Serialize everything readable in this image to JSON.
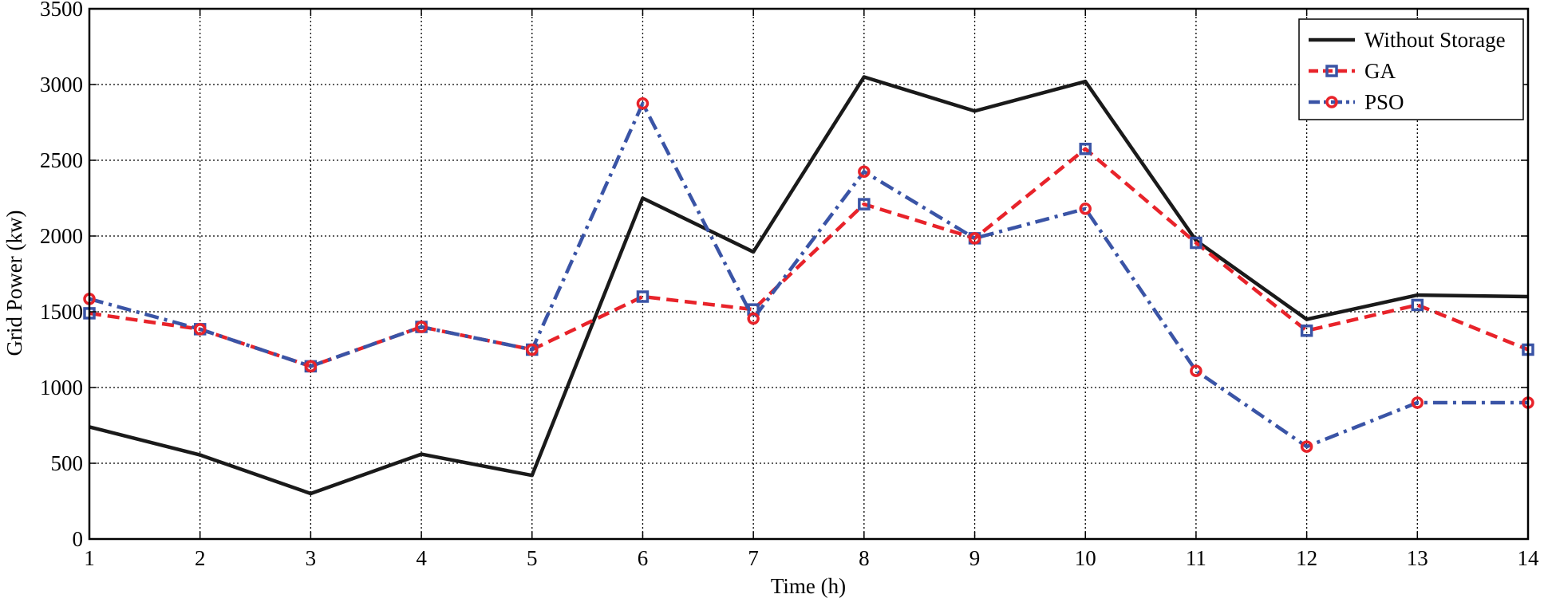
{
  "chart_data": {
    "type": "line",
    "title": "",
    "xlabel": "Time (h)",
    "ylabel": "Grid Power (kw)",
    "xlim": [
      1,
      14
    ],
    "ylim": [
      0,
      3500
    ],
    "grid": true,
    "legend_position": "top-right",
    "x": [
      1,
      2,
      3,
      4,
      5,
      6,
      7,
      8,
      9,
      10,
      11,
      12,
      13,
      14
    ],
    "xticks": [
      "1",
      "2",
      "3",
      "4",
      "5",
      "6",
      "7",
      "8",
      "9",
      "10",
      "11",
      "12",
      "13",
      "14"
    ],
    "yticks": [
      "0",
      "500",
      "1000",
      "1500",
      "2000",
      "2500",
      "3000",
      "3500"
    ],
    "series": [
      {
        "name": "Without Storage",
        "values": [
          740,
          555,
          300,
          560,
          420,
          2250,
          1895,
          3050,
          2825,
          3020,
          1970,
          1450,
          1610,
          1600
        ],
        "color": "#1a1a1a",
        "dash": "solid",
        "marker": "none"
      },
      {
        "name": "GA",
        "values": [
          1490,
          1385,
          1140,
          1400,
          1250,
          1600,
          1515,
          2210,
          1985,
          2575,
          1955,
          1375,
          1545,
          1250
        ],
        "color": "#e8232a",
        "dash": "dashed",
        "marker": "square",
        "marker_color": "#3a54a6"
      },
      {
        "name": "PSO",
        "values": [
          1585,
          1385,
          1140,
          1400,
          1250,
          2875,
          1455,
          2425,
          1985,
          2180,
          1110,
          610,
          900,
          900
        ],
        "color": "#3a54a6",
        "dash": "dashdot",
        "marker": "circle",
        "marker_color": "#e8232a"
      }
    ]
  }
}
